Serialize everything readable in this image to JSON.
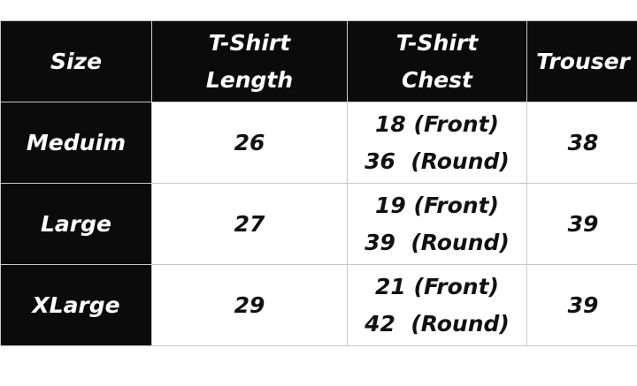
{
  "headers": [
    "Size",
    "T-Shirt\nLength",
    "T-Shirt\nChest",
    "Trouser"
  ],
  "header_lines": [
    [
      "Size"
    ],
    [
      "T-Shirt",
      "Length"
    ],
    [
      "T-Shirt",
      "Chest"
    ],
    [
      "Trouser"
    ]
  ],
  "rows": [
    {
      "size": "Meduim",
      "length": "26",
      "chest_front": "18 (Front)",
      "chest_round": "36  (Round)",
      "trouser": "38"
    },
    {
      "size": "Large",
      "length": "27",
      "chest_front": "19 (Front)",
      "chest_round": "39  (Round)",
      "trouser": "39"
    },
    {
      "size": "XLarge",
      "length": "29",
      "chest_front": "21 (Front)",
      "chest_round": "42  (Round)",
      "trouser": "39"
    }
  ],
  "colors": {
    "header_bg": "#0b0b0b",
    "header_text": "#ffffff",
    "cell_bg": "#ffffff",
    "cell_text": "#111111",
    "border": "#c8c8c8"
  }
}
